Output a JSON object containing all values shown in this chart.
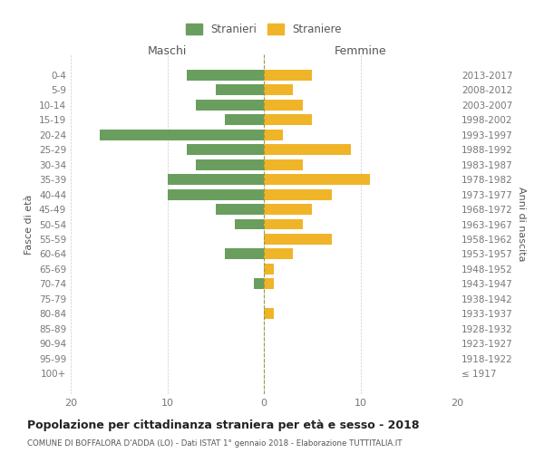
{
  "age_groups": [
    "0-4",
    "5-9",
    "10-14",
    "15-19",
    "20-24",
    "25-29",
    "30-34",
    "35-39",
    "40-44",
    "45-49",
    "50-54",
    "55-59",
    "60-64",
    "65-69",
    "70-74",
    "75-79",
    "80-84",
    "85-89",
    "90-94",
    "95-99",
    "100+"
  ],
  "birth_years": [
    "2013-2017",
    "2008-2012",
    "2003-2007",
    "1998-2002",
    "1993-1997",
    "1988-1992",
    "1983-1987",
    "1978-1982",
    "1973-1977",
    "1968-1972",
    "1963-1967",
    "1958-1962",
    "1953-1957",
    "1948-1952",
    "1943-1947",
    "1938-1942",
    "1933-1937",
    "1928-1932",
    "1923-1927",
    "1918-1922",
    "≤ 1917"
  ],
  "males": [
    8,
    5,
    7,
    4,
    17,
    8,
    7,
    10,
    10,
    5,
    3,
    0,
    4,
    0,
    1,
    0,
    0,
    0,
    0,
    0,
    0
  ],
  "females": [
    5,
    3,
    4,
    5,
    2,
    9,
    4,
    11,
    7,
    5,
    4,
    7,
    3,
    1,
    1,
    0,
    1,
    0,
    0,
    0,
    0
  ],
  "male_color": "#6a9e5f",
  "female_color": "#f0b429",
  "title": "Popolazione per cittadinanza straniera per età e sesso - 2018",
  "subtitle": "COMUNE DI BOFFALORA D'ADDA (LO) - Dati ISTAT 1° gennaio 2018 - Elaborazione TUTTITALIA.IT",
  "xlabel_left": "Maschi",
  "xlabel_right": "Femmine",
  "ylabel_left": "Fasce di età",
  "ylabel_right": "Anni di nascita",
  "legend_male": "Stranieri",
  "legend_female": "Straniere",
  "xlim": 20,
  "background_color": "#ffffff",
  "grid_color": "#cccccc",
  "axis_label_color": "#555555",
  "tick_label_color": "#777777",
  "dashed_line_color": "#999944",
  "title_color": "#222222",
  "subtitle_color": "#555555"
}
